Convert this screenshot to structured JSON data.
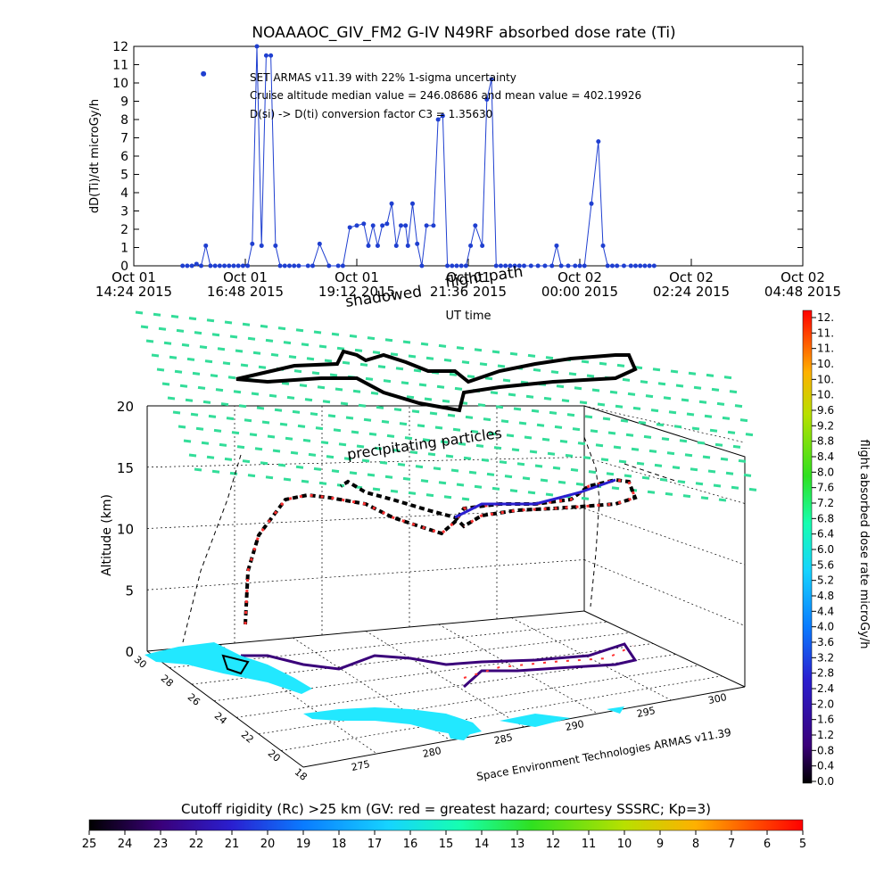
{
  "top_chart": {
    "title": "NOAAAOC_GIV_FM2 G-IV   N49RF  absorbed dose rate (Ti)",
    "ylabel": "dD(Ti)/dt microGy/h",
    "xlabel": "UT time",
    "annotations": [
      "SET ARMAS v11.39 with 22% 1-sigma uncertainty",
      "Cruise altitude median value = 246.08686 and mean value = 402.19926",
      "D(si) -> D(ti) conversion factor C3 = 1.35630"
    ],
    "y_ticks": [
      "0",
      "1",
      "2",
      "3",
      "4",
      "5",
      "6",
      "7",
      "8",
      "9",
      "10",
      "11",
      "12"
    ],
    "x_ticks": [
      {
        "line1": "Oct 01",
        "line2": "14:24 2015"
      },
      {
        "line1": "Oct 01",
        "line2": "16:48 2015"
      },
      {
        "line1": "Oct 01",
        "line2": "19:12 2015"
      },
      {
        "line1": "Oct 01",
        "line2": "21:36 2015"
      },
      {
        "line1": "Oct 02",
        "line2": "00:00 2015"
      },
      {
        "line1": "Oct 02",
        "line2": "02:24 2015"
      },
      {
        "line1": "Oct 02",
        "line2": "04:48 2015"
      }
    ]
  },
  "three_d": {
    "label_shadowed": "shadowed",
    "label_flight_path": "flight path",
    "label_precip": "precipitating particles",
    "altitude_label": "Altitude (km)",
    "altitude_ticks": [
      "0",
      "5",
      "10",
      "15",
      "20"
    ],
    "lat_ticks": [
      "30",
      "28",
      "26",
      "24",
      "22",
      "20",
      "18"
    ],
    "lon_ticks": [
      "275",
      "280",
      "285",
      "290",
      "295",
      "300"
    ],
    "credit": "Space Environment Technologies ARMAS v11.39"
  },
  "colorbar_right": {
    "label": "flight absorbed dose rate microGy/h",
    "ticks": [
      "12.",
      "11.",
      "11.",
      "10.",
      "10.",
      "10.",
      "9.6",
      "9.2",
      "8.8",
      "8.4",
      "8.0",
      "7.6",
      "7.2",
      "6.8",
      "6.4",
      "6.0",
      "5.6",
      "5.2",
      "4.8",
      "4.4",
      "4.0",
      "3.6",
      "3.2",
      "2.8",
      "2.4",
      "2.0",
      "1.6",
      "1.2",
      "0.8",
      "0.4",
      "0.0"
    ]
  },
  "colorbar_bottom": {
    "title": "Cutoff rigidity (Rc) >25 km (GV: red = greatest hazard; courtesy SSSRC; Kp=3)",
    "ticks": [
      "25",
      "24",
      "23",
      "22",
      "21",
      "20",
      "19",
      "18",
      "17",
      "16",
      "15",
      "14",
      "13",
      "12",
      "11",
      "10",
      "9",
      "8",
      "7",
      "6",
      "5"
    ]
  },
  "colors": {
    "series_blue": "#1f3fd0",
    "precip_green": "#33dd99",
    "water_cyan": "#22e8ff",
    "colormap": [
      "#000000",
      "#3a007a",
      "#2a1fd0",
      "#0a7bff",
      "#16d4ff",
      "#16ffb0",
      "#2fe020",
      "#b8e000",
      "#ffb000",
      "#ff5000",
      "#ff0000"
    ]
  },
  "chart_data": {
    "type": "scatter",
    "title": "NOAAAOC_GIV_FM2 G-IV   N49RF  absorbed dose rate (Ti)",
    "xlabel": "UT time",
    "ylabel": "dD(Ti)/dt microGy/h",
    "ylim": [
      0,
      12
    ],
    "xlim": [
      "2015-10-01 14:24",
      "2015-10-02 04:48"
    ],
    "series": [
      {
        "x_hours_since_2015-10-01T14:24": [
          1.05,
          1.15,
          1.25,
          1.35,
          1.45,
          1.55,
          1.65,
          1.75,
          1.85,
          1.95,
          2.05,
          2.15,
          2.25,
          2.35,
          2.45,
          2.55,
          2.65,
          2.75,
          2.85,
          2.95,
          3.05,
          3.15,
          3.25,
          3.35,
          3.45,
          3.55,
          3.75,
          3.85,
          4.0,
          4.2,
          4.4,
          4.5,
          4.65,
          4.8,
          4.95,
          5.05,
          5.15,
          5.25,
          5.35,
          5.45,
          5.55,
          5.65,
          5.75,
          5.85,
          5.9,
          6.0,
          6.1,
          6.2,
          6.3,
          6.45,
          6.55,
          6.65,
          6.75,
          6.85,
          6.95,
          7.05,
          7.15,
          7.25,
          7.35,
          7.5,
          7.6,
          7.7,
          7.8,
          7.9,
          8.0,
          8.1,
          8.2,
          8.3,
          8.4,
          8.55,
          8.7,
          8.85,
          9.0,
          9.1,
          9.2,
          9.35,
          9.5,
          9.6,
          9.7,
          9.85,
          10.0,
          10.1,
          10.2,
          10.3,
          10.4,
          10.55,
          10.7,
          10.8,
          10.9,
          11.0,
          11.1,
          11.2
        ],
        "values": [
          0,
          0,
          0,
          0.1,
          0,
          1.1,
          0,
          0,
          0,
          0,
          0,
          0,
          0,
          0,
          0,
          1.2,
          12,
          1.1,
          11.5,
          11.5,
          1.1,
          0,
          0,
          0,
          0,
          0,
          0,
          0,
          1.2,
          0,
          0,
          0,
          2.1,
          2.2,
          2.3,
          1.1,
          2.2,
          1.1,
          2.2,
          2.3,
          3.4,
          1.1,
          2.2,
          2.2,
          1.1,
          3.4,
          1.2,
          0,
          2.2,
          2.2,
          8.0,
          8.2,
          0,
          0,
          0,
          0,
          0,
          1.1,
          2.2,
          1.1,
          9.1,
          10.2,
          0,
          0,
          0,
          0,
          0,
          0,
          0,
          0,
          0,
          0,
          0,
          1.1,
          0,
          0,
          0,
          0,
          0,
          3.4,
          6.8,
          1.1,
          0,
          0,
          0,
          0,
          0,
          0,
          0,
          0,
          0,
          0
        ],
        "marker_values_highlight": [
          10.5,
          1.1
        ]
      }
    ],
    "three_d": {
      "type": "3d-trajectory",
      "altitude_range_km": [
        0,
        20
      ],
      "lat_range": [
        18,
        30
      ],
      "lon_range": [
        275,
        300
      ],
      "colorbar_range_microGy_h": [
        0.0,
        12.0
      ],
      "cutoff_rigidity_range_GV": [
        25,
        5
      ]
    }
  }
}
